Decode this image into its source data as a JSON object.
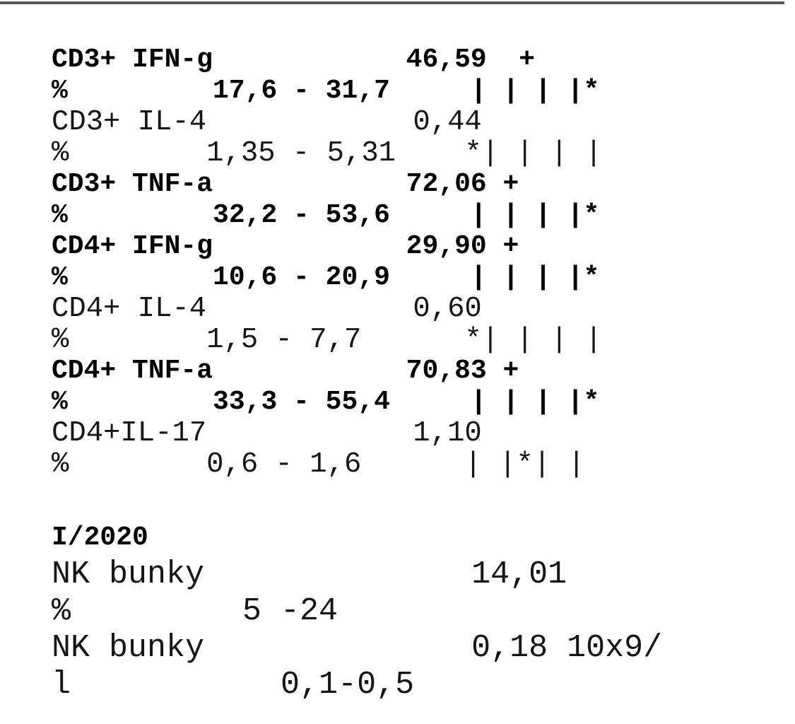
{
  "page": {
    "background": "#ffffff",
    "top_rule_color": "#595959",
    "text_color": "#000000"
  },
  "report": {
    "rows": [
      {
        "name": "cd3-ifng-result",
        "style": "tb",
        "segments": [
          {
            "text": "CD3+ IFN-g",
            "col": 0
          },
          {
            "text": "46,59",
            "col": 22
          },
          {
            "text": "+",
            "col": 29
          }
        ]
      },
      {
        "name": "cd3-ifng-range",
        "style": "tb",
        "segments": [
          {
            "text": "%",
            "col": 0
          },
          {
            "text": "17,6 - 31,7",
            "col": 10
          },
          {
            "text": "| | | |*",
            "col": 26
          }
        ]
      },
      {
        "name": "cd3-il4-result",
        "style": "tr",
        "segments": [
          {
            "text": "CD3+ IL-4",
            "col": 0
          },
          {
            "text": "0,44",
            "col": 21
          }
        ]
      },
      {
        "name": "cd3-il4-range",
        "style": "tr",
        "segments": [
          {
            "text": "%",
            "col": 0
          },
          {
            "text": "1,35 - 5,31",
            "col": 9
          },
          {
            "text": "*| | | |",
            "col": 24
          }
        ]
      },
      {
        "name": "cd3-tnfa-result",
        "style": "tb",
        "segments": [
          {
            "text": "CD3+ TNF-a",
            "col": 0
          },
          {
            "text": "72,06",
            "col": 22
          },
          {
            "text": "+",
            "col": 28
          }
        ]
      },
      {
        "name": "cd3-tnfa-range",
        "style": "tb",
        "segments": [
          {
            "text": "%",
            "col": 0
          },
          {
            "text": "32,2 - 53,6",
            "col": 10
          },
          {
            "text": "| | | |*",
            "col": 26
          }
        ]
      },
      {
        "name": "cd4-ifng-result",
        "style": "tb",
        "segments": [
          {
            "text": "CD4+ IFN-g",
            "col": 0
          },
          {
            "text": "29,90",
            "col": 22
          },
          {
            "text": "+",
            "col": 28
          }
        ]
      },
      {
        "name": "cd4-ifng-range",
        "style": "tb",
        "segments": [
          {
            "text": "%",
            "col": 0
          },
          {
            "text": "10,6 - 20,9",
            "col": 10
          },
          {
            "text": "| | | |*",
            "col": 26
          }
        ]
      },
      {
        "name": "cd4-il4-result",
        "style": "tr",
        "segments": [
          {
            "text": "CD4+ IL-4",
            "col": 0
          },
          {
            "text": "0,60",
            "col": 21
          }
        ]
      },
      {
        "name": "cd4-il4-range",
        "style": "tr",
        "segments": [
          {
            "text": "%",
            "col": 0
          },
          {
            "text": "1,5 - 7,7",
            "col": 9
          },
          {
            "text": "*| | | |",
            "col": 24
          }
        ]
      },
      {
        "name": "cd4-tnfa-result",
        "style": "tb",
        "segments": [
          {
            "text": "CD4+ TNF-a",
            "col": 0
          },
          {
            "text": "70,83",
            "col": 22
          },
          {
            "text": "+",
            "col": 28
          }
        ]
      },
      {
        "name": "cd4-tnfa-range",
        "style": "tb",
        "segments": [
          {
            "text": "%",
            "col": 0
          },
          {
            "text": "33,3 - 55,4",
            "col": 10
          },
          {
            "text": "| | | |*",
            "col": 26
          }
        ]
      },
      {
        "name": "cd4-il17-result",
        "style": "tr",
        "segments": [
          {
            "text": "CD4+IL-17",
            "col": 0
          },
          {
            "text": "1,10",
            "col": 21
          }
        ]
      },
      {
        "name": "cd4-il17-range",
        "style": "tr",
        "segments": [
          {
            "text": "%",
            "col": 0
          },
          {
            "text": "0,6 - 1,6",
            "col": 9
          },
          {
            "text": "| |*| |",
            "col": 24
          }
        ]
      },
      {
        "name": "section-gap",
        "style": "gap",
        "segments": []
      },
      {
        "name": "period-heading",
        "style": "bb",
        "segments": [
          {
            "text": "I/2020",
            "col": 0
          }
        ]
      },
      {
        "name": "nk-pct-result",
        "style": "br",
        "segments": [
          {
            "text": "NK bunky",
            "col": 0
          },
          {
            "text": "14,01",
            "col": 22
          }
        ]
      },
      {
        "name": "nk-pct-range",
        "style": "br",
        "segments": [
          {
            "text": "%",
            "col": 0
          },
          {
            "text": "5 -24",
            "col": 10
          }
        ]
      },
      {
        "name": "nk-abs-result",
        "style": "br",
        "segments": [
          {
            "text": "NK bunky",
            "col": 0
          },
          {
            "text": "0,18 10x9/",
            "col": 22
          }
        ]
      },
      {
        "name": "nk-abs-range",
        "style": "br",
        "segments": [
          {
            "text": "l",
            "col": 0
          },
          {
            "text": "0,1-0,5",
            "col": 12
          }
        ]
      }
    ]
  }
}
